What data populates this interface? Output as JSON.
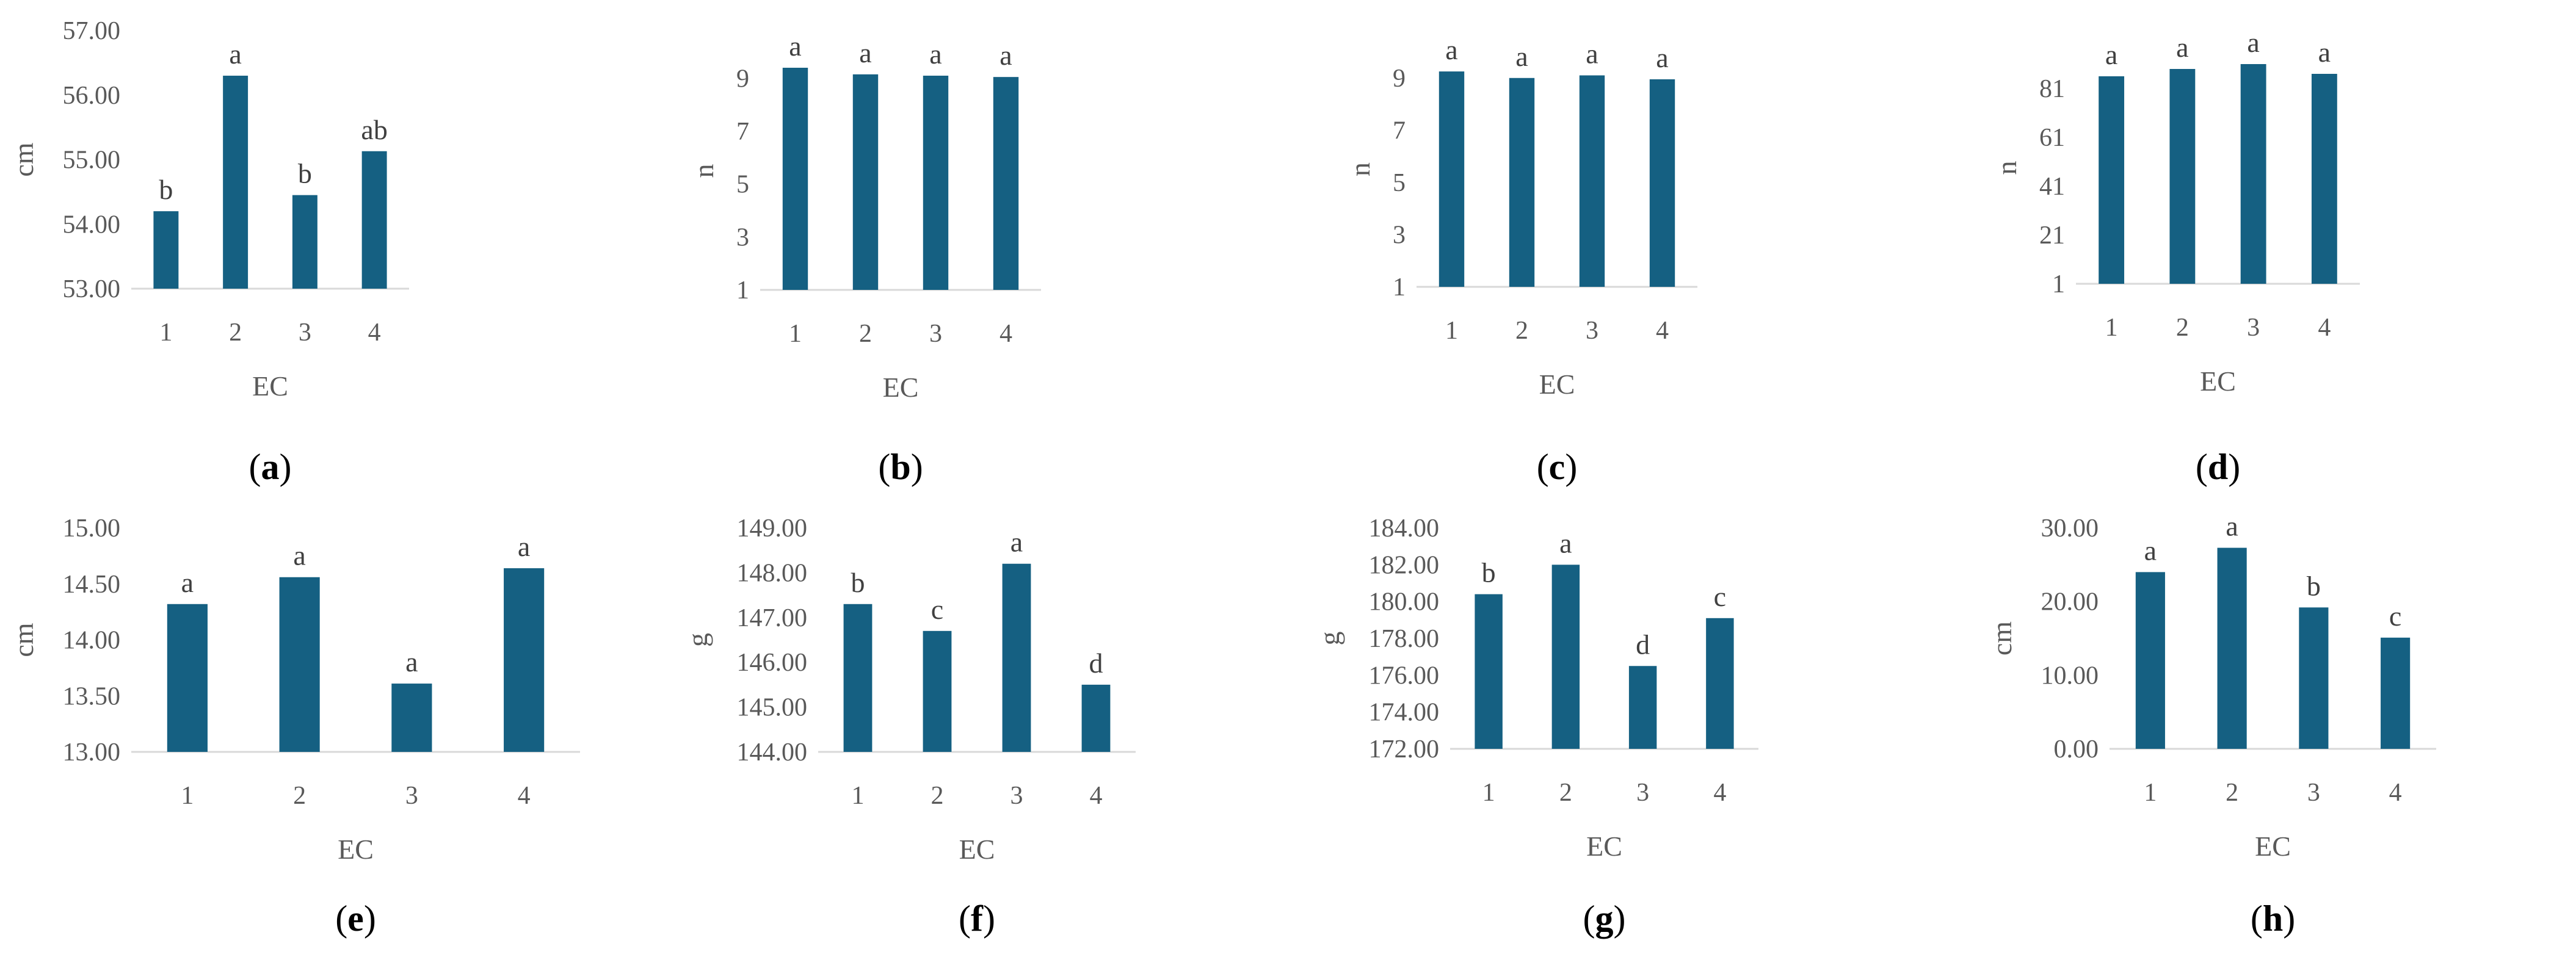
{
  "colors": {
    "bar": "#156082",
    "axis": "#d9d9d9",
    "text": "#595959"
  },
  "chart_data": [
    {
      "id": "a",
      "caption": "a",
      "type": "bar",
      "xlabel": "EC",
      "ylabel": "cm",
      "categories": [
        "1",
        "2",
        "3",
        "4"
      ],
      "values": [
        54.2,
        56.3,
        54.45,
        55.13
      ],
      "letters": [
        "b",
        "a",
        "b",
        "ab"
      ],
      "ylim": [
        53,
        57
      ],
      "yticks": [
        "53.00",
        "54.00",
        "55.00",
        "56.00",
        "57.00"
      ]
    },
    {
      "id": "b",
      "caption": "b",
      "type": "bar",
      "xlabel": "EC",
      "ylabel": "n",
      "categories": [
        "1",
        "2",
        "3",
        "4"
      ],
      "values": [
        9.4,
        9.15,
        9.1,
        9.05
      ],
      "letters": [
        "a",
        "a",
        "a",
        "a"
      ],
      "ylim": [
        1,
        10
      ],
      "yticks": [
        "1",
        "3",
        "5",
        "7",
        "9"
      ]
    },
    {
      "id": "c",
      "caption": "c",
      "type": "bar",
      "xlabel": "EC",
      "ylabel": "n",
      "categories": [
        "1",
        "2",
        "3",
        "4"
      ],
      "values": [
        9.25,
        9.0,
        9.1,
        8.95
      ],
      "letters": [
        "a",
        "a",
        "a",
        "a"
      ],
      "ylim": [
        1,
        10
      ],
      "yticks": [
        "1",
        "3",
        "5",
        "7",
        "9"
      ]
    },
    {
      "id": "d",
      "caption": "d",
      "type": "bar",
      "xlabel": "EC",
      "ylabel": "n",
      "categories": [
        "1",
        "2",
        "3",
        "4"
      ],
      "values": [
        86,
        89,
        91,
        87
      ],
      "letters": [
        "a",
        "a",
        "a",
        "a"
      ],
      "ylim": [
        1,
        96
      ],
      "yticks": [
        "1",
        "21",
        "41",
        "61",
        "81"
      ]
    },
    {
      "id": "e",
      "caption": "e",
      "type": "bar",
      "xlabel": "EC",
      "ylabel": "cm",
      "categories": [
        "1",
        "2",
        "3",
        "4"
      ],
      "values": [
        14.32,
        14.56,
        13.61,
        14.64
      ],
      "letters": [
        "a",
        "a",
        "a",
        "a"
      ],
      "ylim": [
        13,
        15
      ],
      "yticks": [
        "13.00",
        "13.50",
        "14.00",
        "14.50",
        "15.00"
      ]
    },
    {
      "id": "f",
      "caption": "f",
      "type": "bar",
      "xlabel": "EC",
      "ylabel": "g",
      "categories": [
        "1",
        "2",
        "3",
        "4"
      ],
      "values": [
        147.3,
        146.7,
        148.2,
        145.5
      ],
      "letters": [
        "b",
        "c",
        "a",
        "d"
      ],
      "ylim": [
        144,
        149
      ],
      "yticks": [
        "144.00",
        "145.00",
        "146.00",
        "147.00",
        "148.00",
        "149.00"
      ]
    },
    {
      "id": "g",
      "caption": "g",
      "type": "bar",
      "xlabel": "EC",
      "ylabel": "g",
      "categories": [
        "1",
        "2",
        "3",
        "4"
      ],
      "values": [
        180.4,
        182.0,
        176.5,
        179.1
      ],
      "letters": [
        "b",
        "a",
        "d",
        "c"
      ],
      "ylim": [
        172,
        184
      ],
      "yticks": [
        "172.00",
        "174.00",
        "176.00",
        "178.00",
        "180.00",
        "182.00",
        "184.00"
      ]
    },
    {
      "id": "h",
      "caption": "h",
      "type": "bar",
      "xlabel": "EC",
      "ylabel": "cm",
      "categories": [
        "1",
        "2",
        "3",
        "4"
      ],
      "values": [
        24.0,
        27.3,
        19.2,
        15.1
      ],
      "letters": [
        "a",
        "a",
        "b",
        "c"
      ],
      "ylim": [
        0,
        30
      ],
      "yticks": [
        "0.00",
        "10.00",
        "20.00",
        "30.00"
      ]
    }
  ]
}
